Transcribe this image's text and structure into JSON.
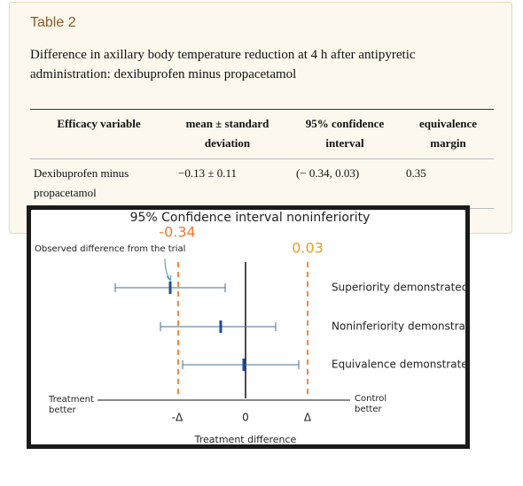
{
  "card": {
    "label": "Table 2",
    "caption": "Difference in axillary body temperature reduction at 4 h after antipyretic administration: dexibuprofen minus propacetamol"
  },
  "table": {
    "header": [
      "Efficacy variable",
      "mean ± standard deviation",
      "95% confidence interval",
      "equivalence margin"
    ],
    "rows": [
      [
        "Dexibuprofen minus propacetamol",
        "−0.13 ± 0.11",
        "(− 0.34, 0.03)",
        "0.35"
      ]
    ]
  },
  "figure": {
    "title": "95% Confidence interval noninferiority",
    "lower_value_label": "-0.34",
    "upper_value_label": "0.03",
    "annotation": "Observed difference from the trial",
    "interval_labels": [
      "Superiority demonstrated",
      "Noninferiority demonstrated",
      "Equivalence demonstrated"
    ],
    "left_label": [
      "Treatment",
      "better"
    ],
    "right_label": [
      "Control",
      "better"
    ],
    "axis_ticks": [
      "-Δ",
      "0",
      "Δ"
    ],
    "axis_title": "Treatment difference"
  }
}
